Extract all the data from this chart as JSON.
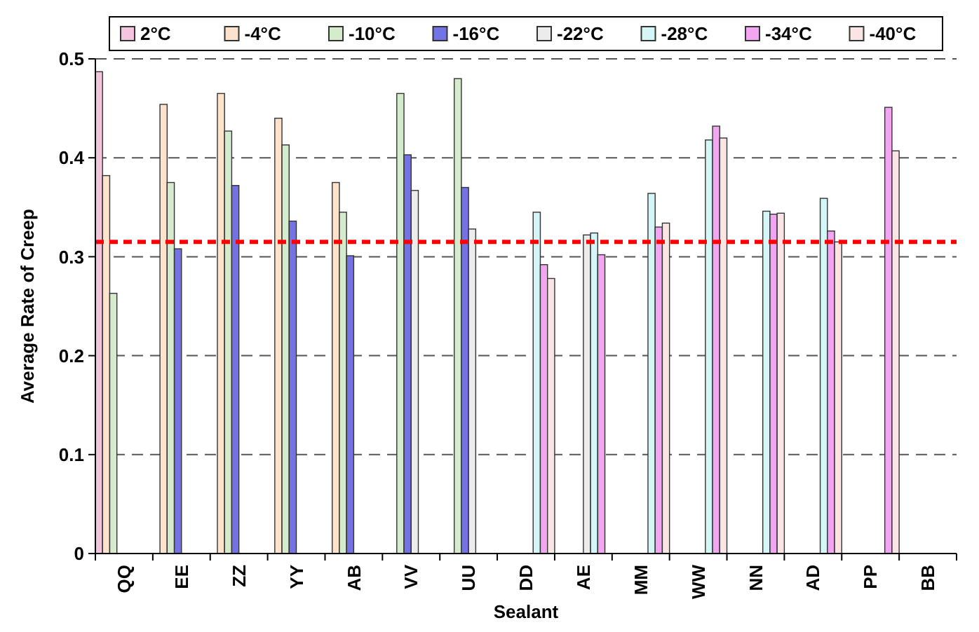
{
  "chart_data": {
    "type": "bar",
    "xlabel": "Sealant",
    "ylabel": "Average Rate of Creep",
    "categories": [
      "QQ",
      "EE",
      "ZZ",
      "YY",
      "AB",
      "VV",
      "UU",
      "DD",
      "AE",
      "MM",
      "WW",
      "NN",
      "AD",
      "PP",
      "BB"
    ],
    "series": [
      {
        "name": "2°C",
        "color": "#f4c4dc",
        "values": [
          0.487,
          null,
          null,
          null,
          null,
          null,
          null,
          null,
          null,
          null,
          null,
          null,
          null,
          null,
          null
        ]
      },
      {
        "name": "-4°C",
        "color": "#fde2cc",
        "values": [
          0.382,
          0.454,
          0.465,
          0.44,
          0.375,
          null,
          null,
          null,
          null,
          null,
          null,
          null,
          null,
          null,
          null
        ]
      },
      {
        "name": "-10°C",
        "color": "#d4eccc",
        "values": [
          0.263,
          0.375,
          0.427,
          0.413,
          0.345,
          0.465,
          0.48,
          null,
          null,
          null,
          null,
          null,
          null,
          null,
          null
        ]
      },
      {
        "name": "-16°C",
        "color": "#7373e6",
        "values": [
          null,
          0.308,
          0.372,
          0.336,
          0.301,
          0.403,
          0.37,
          null,
          null,
          null,
          null,
          null,
          null,
          null,
          null
        ]
      },
      {
        "name": "-22°C",
        "color": "#ececec",
        "values": [
          null,
          null,
          null,
          null,
          null,
          0.367,
          0.328,
          null,
          0.322,
          null,
          null,
          null,
          null,
          null,
          null
        ]
      },
      {
        "name": "-28°C",
        "color": "#d4f6f6",
        "values": [
          null,
          null,
          null,
          null,
          null,
          null,
          null,
          0.345,
          0.324,
          0.364,
          0.418,
          0.346,
          0.359,
          null,
          null
        ]
      },
      {
        "name": "-34°C",
        "color": "#f2a6f2",
        "values": [
          null,
          null,
          null,
          null,
          null,
          null,
          null,
          0.292,
          0.302,
          0.33,
          0.432,
          0.343,
          0.326,
          0.451,
          null
        ]
      },
      {
        "name": "-40°C",
        "color": "#fbe4e4",
        "values": [
          null,
          null,
          null,
          null,
          null,
          null,
          null,
          0.278,
          null,
          0.334,
          0.42,
          0.344,
          0.315,
          0.407,
          null
        ]
      }
    ],
    "ylim": [
      0,
      0.5
    ],
    "yticks": [
      0,
      0.1,
      0.2,
      0.3,
      0.4,
      0.5
    ],
    "grid": "y",
    "legend": "top",
    "ref_lines": [
      {
        "axis": "y",
        "value": 0.315,
        "color": "#ff0000",
        "line_style": "dashed"
      }
    ]
  }
}
